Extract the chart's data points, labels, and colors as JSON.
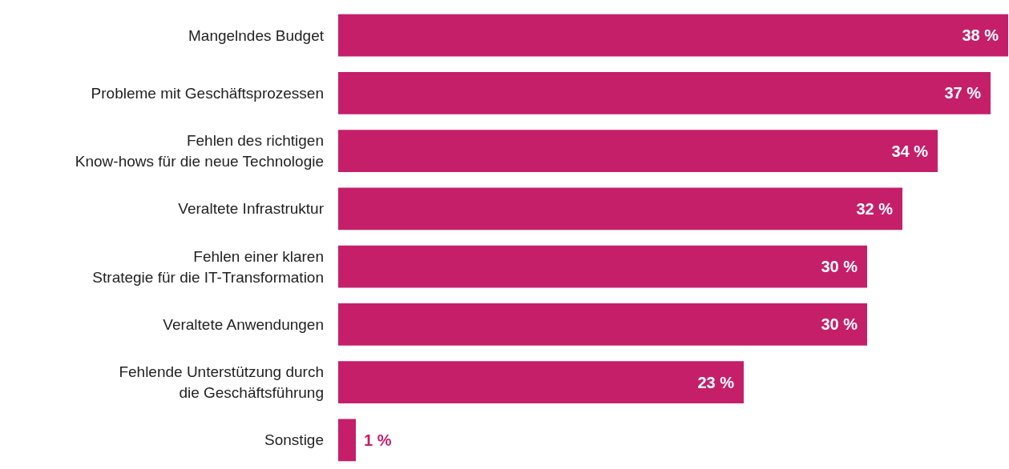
{
  "chart_data": {
    "type": "bar",
    "orientation": "horizontal",
    "categories": [
      "Mangelndes Budget",
      "Probleme mit Geschäftsprozessen",
      "Fehlen des richtigen\nKnow-hows für die neue Technologie",
      "Veraltete Infrastruktur",
      "Fehlen einer klaren\nStrategie für die IT-Transformation",
      "Veraltete Anwendungen",
      "Fehlende Unterstützung durch\ndie Geschäftsführung",
      "Sonstige"
    ],
    "values": [
      38,
      37,
      34,
      32,
      30,
      30,
      23,
      1
    ],
    "value_labels": [
      "38 %",
      "37 %",
      "34 %",
      "32 %",
      "30 %",
      "30 %",
      "23 %",
      "1 %"
    ],
    "color": "#c51f6a"
  }
}
